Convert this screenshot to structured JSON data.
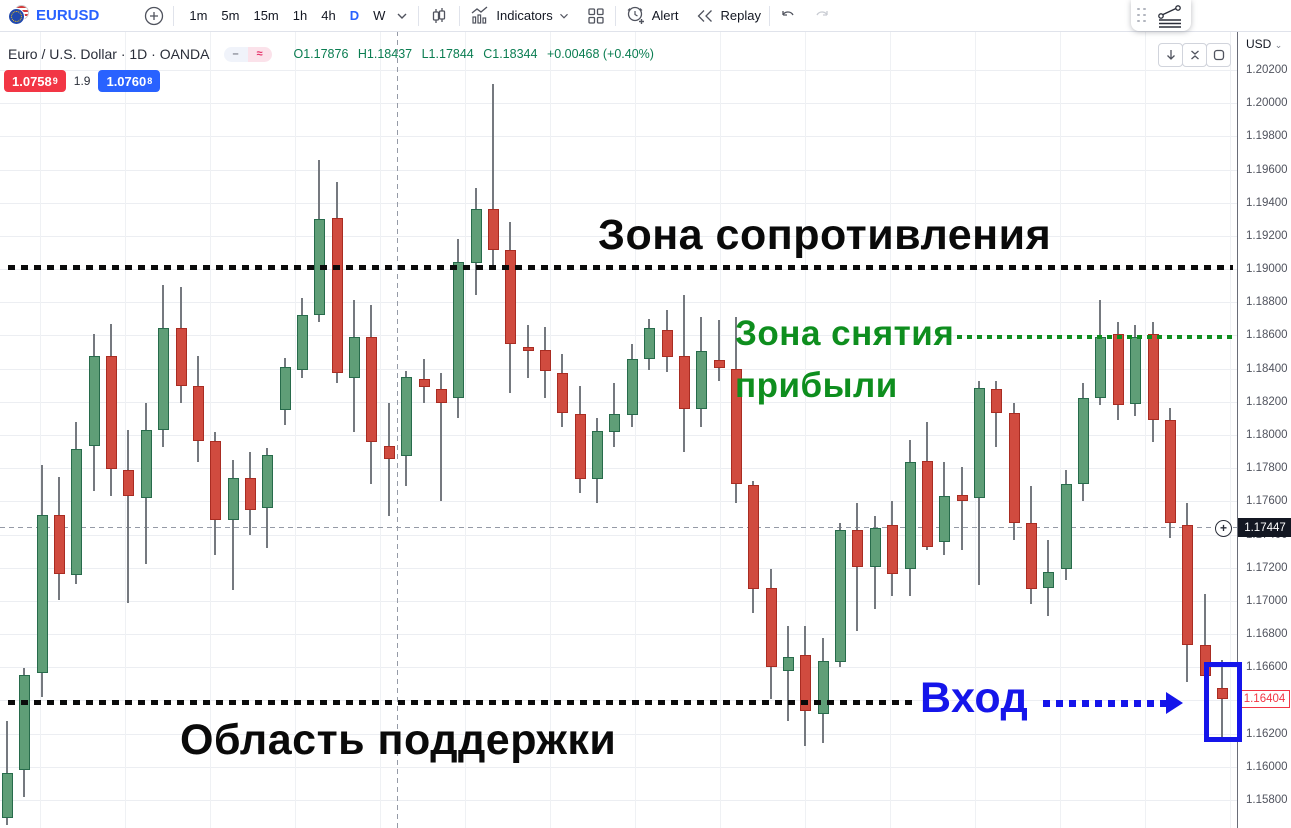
{
  "toolbar": {
    "symbol": "EURUSD",
    "timeframes": [
      "1m",
      "5m",
      "15m",
      "1h",
      "4h",
      "D",
      "W"
    ],
    "active_timeframe": "D",
    "indicators_label": "Indicators",
    "alert_label": "Alert",
    "replay_label": "Replay"
  },
  "legend": {
    "title": "Euro / U.S. Dollar · 1D · OANDA",
    "status_dash": "–",
    "status_approx": "≈",
    "ohlc": {
      "open": "O1.17876",
      "high": "H1.18437",
      "low": "L1.17844",
      "close": "C1.18344",
      "change": "+0.00468 (+0.40%)"
    }
  },
  "quote_badges": {
    "bid": "1.0758",
    "bid_sup": "9",
    "spread": "1.9",
    "ask": "1.0760",
    "ask_sup": "8"
  },
  "price_axis": {
    "currency": "USD",
    "chevron": "⌄",
    "ticks": [
      "1.20200",
      "1.20000",
      "1.19800",
      "1.19600",
      "1.19400",
      "1.19200",
      "1.19000",
      "1.18800",
      "1.18600",
      "1.18400",
      "1.18200",
      "1.18000",
      "1.17800",
      "1.17600",
      "1.17400",
      "1.17200",
      "1.17000",
      "1.16800",
      "1.16600",
      "1.16400",
      "1.16200",
      "1.16000",
      "1.15800"
    ],
    "crosshair_label": "1.17447",
    "last_price_label": "1.16404"
  },
  "annotations": {
    "resistance_text": "Зона сопротивления",
    "profit_text_line1": "Зона снятия",
    "profit_text_line2": "прибыли",
    "support_text": "Область поддержки",
    "entry_text": "Вход",
    "plus_glyph": "+"
  },
  "colors": {
    "up_fill": "#5F9E77",
    "up_border": "#276B4B",
    "down_fill": "#D04B3F",
    "down_border": "#A92C22",
    "accent_blue": "#2962ff",
    "annotation_green": "#0e8e1e",
    "annotation_blue": "#1515ea",
    "badge_red": "#f23645",
    "badge_blue": "#2962ff"
  },
  "chart_data": {
    "type": "candlestick",
    "symbol": "EURUSD",
    "timeframe": "1D",
    "price_range": {
      "max": 1.202,
      "min": 1.158
    },
    "grid": true,
    "levels": [
      {
        "name": "resistance-zone",
        "price": 1.1901,
        "style": "black-dotted",
        "label": "Зона сопротивления"
      },
      {
        "name": "take-profit-zone",
        "price": 1.1859,
        "style": "green-dotted",
        "label": "Зона снятия прибыли"
      },
      {
        "name": "support-zone",
        "price": 1.164,
        "style": "black-dotted",
        "label": "Область поддержки"
      },
      {
        "name": "crosshair",
        "price": 1.17447,
        "style": "grey-dashed"
      },
      {
        "name": "last-price",
        "price": 1.16404
      }
    ],
    "candles_format": [
      "open",
      "high",
      "low",
      "close"
    ],
    "candles": [
      [
        1.15692,
        1.16277,
        1.1565,
        1.15963
      ],
      [
        1.15981,
        1.16596,
        1.15819,
        1.16554
      ],
      [
        1.16566,
        1.17819,
        1.16421,
        1.17518
      ],
      [
        1.17518,
        1.17747,
        1.17006,
        1.17162
      ],
      [
        1.17156,
        1.18078,
        1.17102,
        1.17916
      ],
      [
        1.17934,
        1.18609,
        1.17662,
        1.18476
      ],
      [
        1.18476,
        1.18669,
        1.17632,
        1.17795
      ],
      [
        1.17789,
        1.1803,
        1.16988,
        1.17632
      ],
      [
        1.1762,
        1.18193,
        1.17223,
        1.1803
      ],
      [
        1.1803,
        1.18904,
        1.17928,
        1.18645
      ],
      [
        1.18645,
        1.18892,
        1.18193,
        1.18295
      ],
      [
        1.18295,
        1.18476,
        1.17837,
        1.17964
      ],
      [
        1.17964,
        1.18018,
        1.17277,
        1.17488
      ],
      [
        1.17488,
        1.17849,
        1.17066,
        1.17741
      ],
      [
        1.17741,
        1.17897,
        1.17397,
        1.17548
      ],
      [
        1.1756,
        1.17922,
        1.17319,
        1.1788
      ],
      [
        1.18151,
        1.18464,
        1.1806,
        1.1841
      ],
      [
        1.18392,
        1.18826,
        1.18344,
        1.18723
      ],
      [
        1.18723,
        1.19658,
        1.18681,
        1.19302
      ],
      [
        1.19308,
        1.19525,
        1.18314,
        1.18374
      ],
      [
        1.18344,
        1.18814,
        1.18018,
        1.18591
      ],
      [
        1.18591,
        1.18784,
        1.17705,
        1.17958
      ],
      [
        1.17934,
        1.18193,
        1.17512,
        1.17855
      ],
      [
        1.17873,
        1.18386,
        1.17693,
        1.1835
      ],
      [
        1.18338,
        1.18458,
        1.18193,
        1.18289
      ],
      [
        1.18277,
        1.18374,
        1.17602,
        1.18193
      ],
      [
        1.18223,
        1.19181,
        1.18103,
        1.19043
      ],
      [
        1.19037,
        1.19489,
        1.18844,
        1.19362
      ],
      [
        1.19362,
        1.20116,
        1.19019,
        1.19115
      ],
      [
        1.19115,
        1.19284,
        1.18253,
        1.18549
      ],
      [
        1.1853,
        1.18663,
        1.18344,
        1.18506
      ],
      [
        1.18512,
        1.18651,
        1.18223,
        1.18386
      ],
      [
        1.18374,
        1.18488,
        1.18048,
        1.18133
      ],
      [
        1.18127,
        1.18295,
        1.1765,
        1.17735
      ],
      [
        1.17735,
        1.18103,
        1.1759,
        1.18024
      ],
      [
        1.18018,
        1.18314,
        1.17928,
        1.18127
      ],
      [
        1.18121,
        1.18549,
        1.18048,
        1.18458
      ],
      [
        1.18458,
        1.18699,
        1.18392,
        1.18645
      ],
      [
        1.18633,
        1.18753,
        1.1838,
        1.1847
      ],
      [
        1.18476,
        1.18844,
        1.17897,
        1.18157
      ],
      [
        1.18157,
        1.18711,
        1.18048,
        1.18506
      ],
      [
        1.18452,
        1.18693,
        1.18326,
        1.18404
      ],
      [
        1.18398,
        1.18711,
        1.1759,
        1.17705
      ],
      [
        1.17699,
        1.17723,
        1.16927,
        1.17072
      ],
      [
        1.17078,
        1.17193,
        1.16409,
        1.16602
      ],
      [
        1.16578,
        1.16849,
        1.16277,
        1.16662
      ],
      [
        1.16674,
        1.16849,
        1.16126,
        1.16337
      ],
      [
        1.16318,
        1.16777,
        1.16144,
        1.16638
      ],
      [
        1.16632,
        1.1747,
        1.16602,
        1.17428
      ],
      [
        1.17428,
        1.1759,
        1.16819,
        1.17205
      ],
      [
        1.17205,
        1.17512,
        1.16952,
        1.1744
      ],
      [
        1.17458,
        1.17602,
        1.1703,
        1.17162
      ],
      [
        1.17193,
        1.1797,
        1.1703,
        1.17837
      ],
      [
        1.17843,
        1.18078,
        1.17307,
        1.17325
      ],
      [
        1.17355,
        1.17837,
        1.17277,
        1.17632
      ],
      [
        1.17638,
        1.17807,
        1.17307,
        1.17602
      ],
      [
        1.1762,
        1.18326,
        1.17096,
        1.18283
      ],
      [
        1.18277,
        1.18326,
        1.17928,
        1.18133
      ],
      [
        1.18133,
        1.18193,
        1.17367,
        1.1747
      ],
      [
        1.1747,
        1.17693,
        1.16982,
        1.17072
      ],
      [
        1.17078,
        1.17367,
        1.16909,
        1.17175
      ],
      [
        1.17193,
        1.17789,
        1.17126,
        1.17705
      ],
      [
        1.17705,
        1.18314,
        1.17602,
        1.18223
      ],
      [
        1.18223,
        1.18814,
        1.18181,
        1.18591
      ],
      [
        1.18609,
        1.18681,
        1.1809,
        1.18181
      ],
      [
        1.18187,
        1.18663,
        1.18114,
        1.18591
      ],
      [
        1.18609,
        1.18681,
        1.17958,
        1.1809
      ],
      [
        1.1809,
        1.18163,
        1.1738,
        1.1747
      ],
      [
        1.17458,
        1.1759,
        1.16512,
        1.16735
      ],
      [
        1.16735,
        1.17042,
        1.16506,
        1.16548
      ],
      [
        1.16476,
        1.16644,
        1.1618,
        1.16409
      ]
    ]
  }
}
